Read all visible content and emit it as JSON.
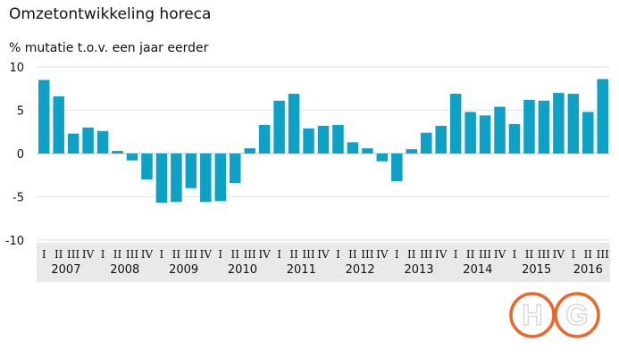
{
  "chart_data": {
    "type": "bar",
    "title": "Omzetontwikkeling horeca",
    "ylabel": "% mutatie t.o.v. een jaar eerder",
    "xlabel": "",
    "ylim": [
      -10,
      10
    ],
    "yticks": [
      10,
      5,
      0,
      -5,
      -10
    ],
    "grid": true,
    "bar_color": "#0fa0c6",
    "categories": [
      "2007 I",
      "2007 II",
      "2007 III",
      "2007 IV",
      "2008 I",
      "2008 II",
      "2008 III",
      "2008 IV",
      "2009 I",
      "2009 II",
      "2009 III",
      "2009 IV",
      "2010 I",
      "2010 II",
      "2010 III",
      "2010 IV",
      "2011 I",
      "2011 II",
      "2011 III",
      "2011 IV",
      "2012 I",
      "2012 II",
      "2012 III",
      "2012 IV",
      "2013 I",
      "2013 II",
      "2013 III",
      "2013 IV",
      "2014 I",
      "2014 II",
      "2014 III",
      "2014 IV",
      "2015 I",
      "2015 II",
      "2015 III",
      "2015 IV",
      "2016 I",
      "2016 II",
      "2016 III"
    ],
    "quarter_labels": [
      "I",
      "II",
      "III",
      "IV",
      "I",
      "II",
      "III",
      "IV",
      "I",
      "II",
      "III",
      "IV",
      "I",
      "II",
      "III",
      "IV",
      "I",
      "II",
      "III",
      "IV",
      "I",
      "II",
      "III",
      "IV",
      "I",
      "II",
      "III",
      "IV",
      "I",
      "II",
      "III",
      "IV",
      "I",
      "II",
      "III",
      "IV",
      "I",
      "II",
      "III"
    ],
    "years": [
      "2007",
      "2008",
      "2009",
      "2010",
      "2011",
      "2012",
      "2013",
      "2014",
      "2015",
      "2016"
    ],
    "values": [
      8.5,
      6.6,
      2.3,
      3.0,
      2.6,
      0.3,
      -0.8,
      -3.0,
      -5.7,
      -5.6,
      -4.0,
      -5.6,
      -5.5,
      -3.4,
      0.6,
      3.3,
      6.1,
      6.9,
      2.9,
      3.2,
      3.3,
      1.3,
      0.6,
      -0.9,
      -3.2,
      0.5,
      2.4,
      3.2,
      6.9,
      4.8,
      4.4,
      5.4,
      3.4,
      6.2,
      6.1,
      7.0,
      6.9,
      4.8,
      8.6
    ]
  },
  "logo": {
    "text": "HG",
    "color": "#e8692c"
  }
}
